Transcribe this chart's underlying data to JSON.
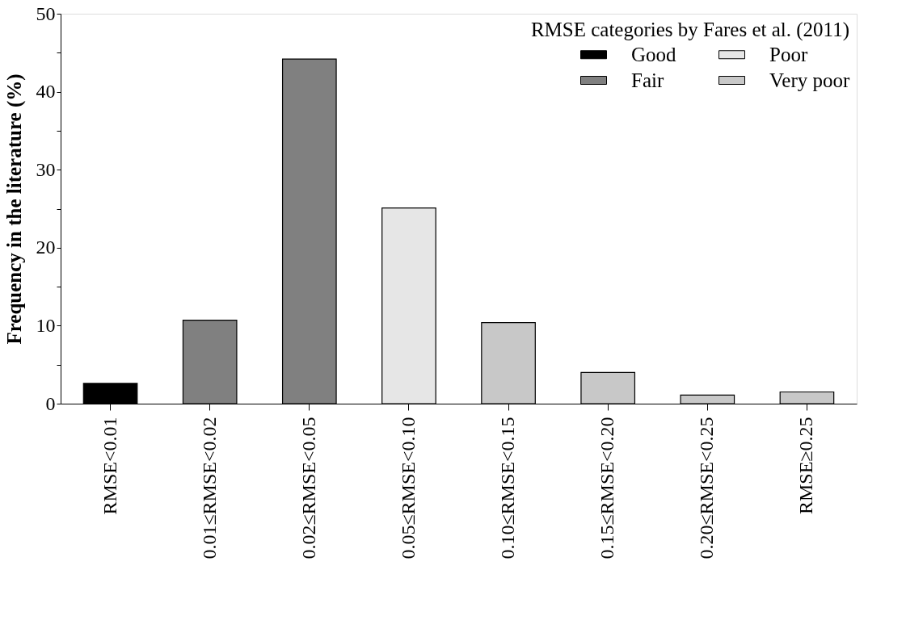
{
  "chart_data": {
    "type": "bar",
    "ylabel": "Frequency in the literature (%)",
    "legend_title": "RMSE categories by Fares et al. (2011)",
    "categories": [
      "RMSE<0.01",
      "0.01≤RMSE<0.02",
      "0.02≤RMSE<0.05",
      "0.05≤RMSE<0.10",
      "0.10≤RMSE<0.15",
      "0.15≤RMSE<0.20",
      "0.20≤RMSE<0.25",
      "RMSE≥0.25"
    ],
    "series": [
      {
        "name": "Good",
        "color": "#000000",
        "values": [
          2.6,
          null,
          null,
          null,
          null,
          null,
          null,
          null
        ]
      },
      {
        "name": "Fair",
        "color": "#808080",
        "values": [
          null,
          10.7,
          44.2,
          null,
          null,
          null,
          null,
          null
        ]
      },
      {
        "name": "Poor",
        "color": "#e6e6e6",
        "values": [
          null,
          null,
          null,
          25.1,
          null,
          null,
          null,
          null
        ]
      },
      {
        "name": "Very poor",
        "color": "#c8c8c8",
        "values": [
          null,
          null,
          null,
          null,
          10.4,
          4.0,
          1.1,
          1.5
        ]
      }
    ],
    "ylim": [
      0,
      50
    ],
    "yticks": [
      0,
      {
        "value": 5,
        "label": null
      },
      10,
      {
        "value": 15,
        "label": null
      },
      20,
      {
        "value": 25,
        "label": null
      },
      30,
      {
        "value": 35,
        "label": null
      },
      40,
      {
        "value": 45,
        "label": null
      },
      50
    ],
    "grid": false,
    "legend": "top right"
  }
}
